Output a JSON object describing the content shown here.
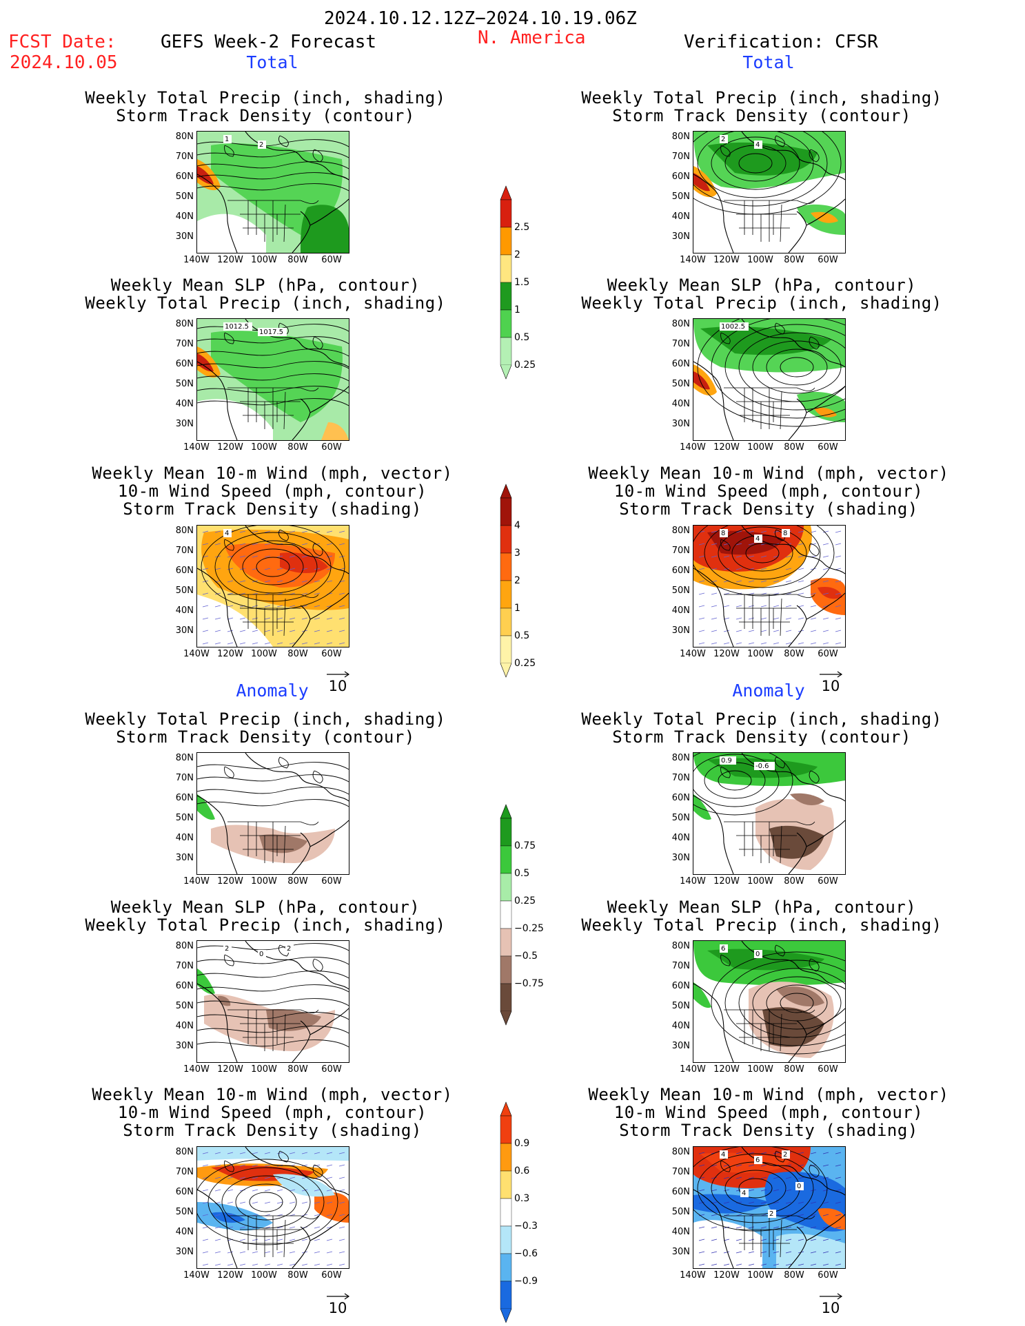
{
  "header": {
    "period": "2024.10.12.12Z−2024.10.19.06Z",
    "fcst_label": "FCST Date:",
    "fcst_date": "2024.10.05",
    "forecast_title": "GEFS Week-2 Forecast",
    "region": "N. America",
    "verification": "Verification: CFSR"
  },
  "sections": {
    "total": "Total",
    "anomaly": "Anomaly"
  },
  "axes": {
    "lat_labels": [
      "80N",
      "70N",
      "60N",
      "50N",
      "40N",
      "30N"
    ],
    "lon_labels": [
      "140W",
      "120W",
      "100W",
      "80W",
      "60W"
    ]
  },
  "panels": {
    "left_total_precip": {
      "title1": "Weekly Total Precip (inch, shading)",
      "title2": "Storm Track Density (contour)",
      "labels": [
        "1",
        "2"
      ]
    },
    "left_total_slp": {
      "title1": "Weekly Mean SLP (hPa, contour)",
      "title2": "Weekly Total Precip (inch, shading)",
      "labels": [
        "1012.5",
        "1017.5"
      ]
    },
    "left_total_wind": {
      "title1": "Weekly Mean 10-m Wind (mph, vector)",
      "title2": "10-m Wind Speed (mph, contour)",
      "title3": "Storm Track Density (shading)",
      "labels": [
        "4"
      ]
    },
    "right_total_precip": {
      "title1": "Weekly Total Precip (inch, shading)",
      "title2": "Storm Track Density (contour)",
      "labels": [
        "2",
        "4"
      ]
    },
    "right_total_slp": {
      "title1": "Weekly Mean SLP (hPa, contour)",
      "title2": "Weekly Total Precip (inch, shading)",
      "labels": [
        "1002.5"
      ]
    },
    "right_total_wind": {
      "title1": "Weekly Mean 10-m Wind (mph, vector)",
      "title2": "10-m Wind Speed (mph, contour)",
      "title3": "Storm Track Density (shading)",
      "labels": [
        "8",
        "4",
        "8"
      ]
    },
    "left_anom_precip": {
      "title1": "Weekly Total Precip (inch, shading)",
      "title2": "Storm Track Density (contour)",
      "labels": []
    },
    "left_anom_slp": {
      "title1": "Weekly Mean SLP (hPa, contour)",
      "title2": "Weekly Total Precip (inch, shading)",
      "labels": [
        "2",
        "0",
        "2"
      ]
    },
    "left_anom_wind": {
      "title1": "Weekly Mean 10-m Wind (mph, vector)",
      "title2": "10-m Wind Speed (mph, contour)",
      "title3": "Storm Track Density (shading)",
      "labels": []
    },
    "right_anom_precip": {
      "title1": "Weekly Total Precip (inch, shading)",
      "title2": "Storm Track Density (contour)",
      "labels": [
        "0.9",
        "-0.6"
      ]
    },
    "right_anom_slp": {
      "title1": "Weekly Mean SLP (hPa, contour)",
      "title2": "Weekly Total Precip (inch, shading)",
      "labels": [
        "6",
        "0"
      ]
    },
    "right_anom_wind": {
      "title1": "Weekly Mean 10-m Wind (mph, vector)",
      "title2": "10-m Wind Speed (mph, contour)",
      "title3": "Storm Track Density (shading)",
      "labels": [
        "4",
        "6",
        "2",
        "4",
        "0",
        "2"
      ]
    }
  },
  "colorbars": {
    "precip_total": {
      "labels": [
        "2.5",
        "2",
        "1.5",
        "1",
        "0.5",
        "0.25"
      ],
      "colors": [
        "#d8200f",
        "#ff9900",
        "#ffe680",
        "#1f9a1f",
        "#4fd24f",
        "#b4f0b4"
      ]
    },
    "storm_total": {
      "labels": [
        "4",
        "3",
        "2",
        "1",
        "0.5",
        "0.25"
      ],
      "colors": [
        "#a0140a",
        "#e0300f",
        "#ff6a10",
        "#ffa510",
        "#ffcf50",
        "#fff3a8"
      ]
    },
    "precip_anom": {
      "labels": [
        "0.75",
        "0.5",
        "0.25",
        "−0.25",
        "−0.5",
        "−0.75"
      ],
      "colors": [
        "#1e9a1e",
        "#3cc83c",
        "#a8eca8",
        "#ffffff",
        "#e6c2b4",
        "#a07868",
        "#6a4a3a"
      ]
    },
    "storm_anom": {
      "labels": [
        "0.9",
        "0.6",
        "0.3",
        "−0.3",
        "−0.6",
        "−0.9"
      ],
      "colors": [
        "#f04010",
        "#ff9a10",
        "#ffe070",
        "#ffffff",
        "#b4e6f8",
        "#5ab4f0",
        "#1a6ae0"
      ]
    }
  },
  "vector_ref": "10",
  "colors": {
    "land_line": "#000000",
    "vector": "#4040c0"
  }
}
